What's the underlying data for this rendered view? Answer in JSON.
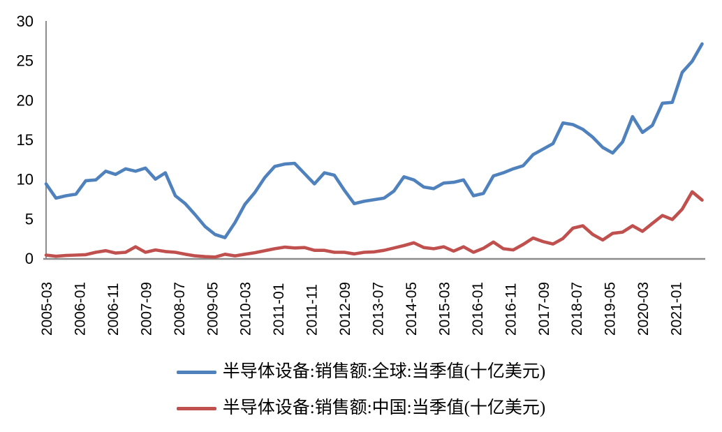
{
  "chart_data": {
    "type": "line",
    "title": "",
    "xlabel": "",
    "ylabel": "",
    "ylim": [
      0,
      30
    ],
    "y_ticks": [
      0,
      5,
      10,
      15,
      20,
      25,
      30
    ],
    "grid": false,
    "legend_position": "bottom-center",
    "x_tick_labels": [
      "2005-03",
      "2006-01",
      "2006-11",
      "2007-09",
      "2008-07",
      "2009-05",
      "2010-03",
      "2011-01",
      "2011-11",
      "2012-09",
      "2013-07",
      "2014-05",
      "2015-03",
      "2016-01",
      "2016-11",
      "2017-09",
      "2018-07",
      "2019-05",
      "2020-03",
      "2021-01"
    ],
    "x_tick_interval_months": 10,
    "data_interval_months": 3,
    "x": [
      "2005-03",
      "2005-06",
      "2005-09",
      "2005-12",
      "2006-03",
      "2006-06",
      "2006-09",
      "2006-12",
      "2007-03",
      "2007-06",
      "2007-09",
      "2007-12",
      "2008-03",
      "2008-06",
      "2008-09",
      "2008-12",
      "2009-03",
      "2009-06",
      "2009-09",
      "2009-12",
      "2010-03",
      "2010-06",
      "2010-09",
      "2010-12",
      "2011-03",
      "2011-06",
      "2011-09",
      "2011-12",
      "2012-03",
      "2012-06",
      "2012-09",
      "2012-12",
      "2013-03",
      "2013-06",
      "2013-09",
      "2013-12",
      "2014-03",
      "2014-06",
      "2014-09",
      "2014-12",
      "2015-03",
      "2015-06",
      "2015-09",
      "2015-12",
      "2016-03",
      "2016-06",
      "2016-09",
      "2016-12",
      "2017-03",
      "2017-06",
      "2017-09",
      "2017-12",
      "2018-03",
      "2018-06",
      "2018-09",
      "2018-12",
      "2019-03",
      "2019-06",
      "2019-09",
      "2019-12",
      "2020-03",
      "2020-06",
      "2020-09",
      "2020-12",
      "2021-03",
      "2021-06",
      "2021-09"
    ],
    "series": [
      {
        "name": "半导体设备:销售额:全球:当季值(十亿美元)",
        "color": "#4F81BD",
        "values": [
          9.4,
          7.6,
          7.9,
          8.1,
          9.8,
          9.9,
          11.0,
          10.6,
          11.3,
          11.0,
          11.4,
          10.0,
          10.8,
          7.9,
          6.9,
          5.5,
          4.0,
          3.0,
          2.6,
          4.5,
          6.8,
          8.3,
          10.2,
          11.6,
          11.9,
          12.0,
          10.7,
          9.4,
          10.8,
          10.5,
          8.6,
          6.9,
          7.2,
          7.4,
          7.6,
          8.5,
          10.3,
          9.9,
          9.0,
          8.8,
          9.5,
          9.6,
          9.9,
          7.9,
          8.2,
          10.4,
          10.8,
          11.3,
          11.7,
          13.1,
          13.8,
          14.5,
          17.1,
          16.9,
          16.3,
          15.3,
          14.0,
          13.3,
          14.7,
          17.9,
          15.9,
          16.8,
          19.6,
          19.7,
          23.5,
          24.9,
          27.1
        ]
      },
      {
        "name": "半导体设备:销售额:中国:当季值(十亿美元)",
        "color": "#C0504D",
        "values": [
          0.4,
          0.25,
          0.35,
          0.4,
          0.45,
          0.75,
          0.95,
          0.65,
          0.75,
          1.45,
          0.75,
          1.05,
          0.85,
          0.75,
          0.5,
          0.3,
          0.2,
          0.15,
          0.5,
          0.3,
          0.5,
          0.7,
          0.95,
          1.2,
          1.4,
          1.3,
          1.35,
          1.0,
          1.0,
          0.75,
          0.75,
          0.55,
          0.75,
          0.8,
          1.0,
          1.3,
          1.6,
          1.95,
          1.35,
          1.2,
          1.45,
          0.9,
          1.45,
          0.75,
          1.25,
          2.05,
          1.2,
          1.05,
          1.75,
          2.55,
          2.1,
          1.8,
          2.5,
          3.8,
          4.1,
          3.0,
          2.3,
          3.15,
          3.3,
          4.1,
          3.4,
          4.4,
          5.4,
          4.9,
          6.2,
          8.4,
          7.35
        ]
      }
    ],
    "colors": {
      "axis_line": "#8C8C8C",
      "tick_text": "#000000",
      "background": "#FFFFFF"
    }
  }
}
